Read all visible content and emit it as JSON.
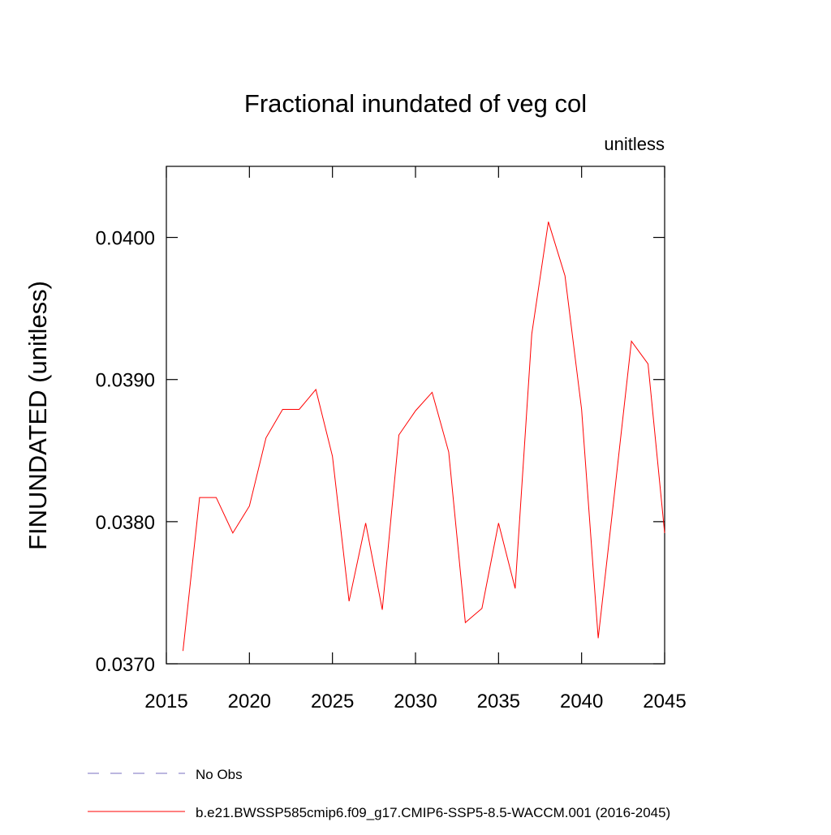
{
  "chart_data": {
    "type": "line",
    "title": "Fractional inundated of veg col",
    "subtitle": "unitless",
    "y_label": "FINUNDATED  (unitless)",
    "x": [
      2016,
      2017,
      2018,
      2019,
      2020,
      2021,
      2022,
      2023,
      2024,
      2025,
      2026,
      2027,
      2028,
      2029,
      2030,
      2031,
      2032,
      2033,
      2034,
      2035,
      2036,
      2037,
      2038,
      2039,
      2040,
      2041,
      2042,
      2043,
      2044,
      2045
    ],
    "series": [
      {
        "name": "b.e21.BWSSP585cmip6.f09_g17.CMIP6-SSP5-8.5-WACCM.001 (2016-2045)",
        "color": "#ff0000",
        "values": [
          0.03709,
          0.03817,
          0.03817,
          0.03792,
          0.03811,
          0.03859,
          0.03879,
          0.03879,
          0.03893,
          0.03846,
          0.03744,
          0.03799,
          0.03738,
          0.03861,
          0.03878,
          0.03891,
          0.03849,
          0.03729,
          0.03739,
          0.03799,
          0.03753,
          0.03932,
          0.04011,
          0.03973,
          0.03879,
          0.03718,
          0.03822,
          0.03927,
          0.03911,
          0.03792
        ]
      }
    ],
    "reference_entries": [
      {
        "name": "No Obs",
        "color": "#7a6fc0",
        "dashed": true
      }
    ],
    "xlim": [
      2015,
      2045
    ],
    "xticks": [
      2015,
      2020,
      2025,
      2030,
      2035,
      2040,
      2045
    ],
    "ylim": [
      0.037,
      0.0405
    ],
    "yticks": [
      {
        "value": 0.037,
        "label": "0.0370"
      },
      {
        "value": 0.038,
        "label": "0.0380"
      },
      {
        "value": 0.039,
        "label": "0.0390"
      },
      {
        "value": 0.04,
        "label": "0.0400"
      }
    ]
  }
}
